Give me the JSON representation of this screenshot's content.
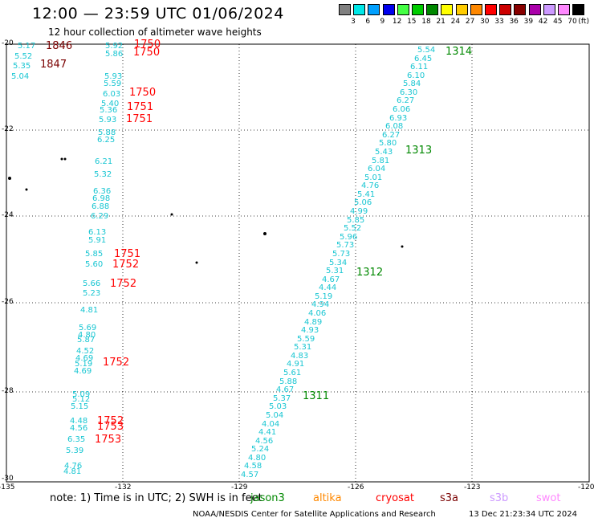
{
  "title": "12:00 — 23:59 UTC 01/06/2024",
  "subtitle": "12 hour collection of altimeter wave heights",
  "legend": {
    "unit": "(ft)",
    "levels": [
      "3",
      "6",
      "9",
      "12",
      "15",
      "18",
      "21",
      "24",
      "27",
      "30",
      "33",
      "36",
      "39",
      "42",
      "45",
      "70"
    ],
    "colors": [
      "#808080",
      "#00e8e8",
      "#00a0ff",
      "#0000ee",
      "#44ff44",
      "#00cc00",
      "#008800",
      "#ffff00",
      "#ffcc00",
      "#ff8800",
      "#ff0000",
      "#cc0000",
      "#880000",
      "#aa00aa",
      "#cc99ff",
      "#ff88ff",
      "#000000"
    ]
  },
  "axes": {
    "lat_labels": [
      "-20",
      "-22",
      "-24",
      "-26",
      "-28",
      "-30"
    ],
    "lon_labels": [
      "-135",
      "-132",
      "-129",
      "-126",
      "-123",
      "-120"
    ]
  },
  "tracks": {
    "west": {
      "color": "#19c6d2",
      "values": [
        "5.17",
        "5.52",
        "5.35",
        "5.04",
        "5.92",
        "5.86",
        "5.93",
        "5.59",
        "6.03",
        "5.40",
        "5.36",
        "5.93",
        "5.88",
        "6.25",
        "6.21",
        "5.32",
        "6.36",
        "6.98",
        "6.88",
        "6.29",
        "6.13",
        "5.91",
        "5.85",
        "5.60",
        "5.66",
        "5.23",
        "4.81",
        "5.69",
        "4.80",
        "5.87",
        "4.52",
        "4.69",
        "5.19",
        "4.69",
        "5.09",
        "5.12",
        "5.15",
        "4.48",
        "4.56",
        "6.35",
        "5.39",
        "4.76",
        "4.81"
      ],
      "time_labels": [
        {
          "text": "1846",
          "color": "#7a0000"
        },
        {
          "text": "1847",
          "color": "#7a0000"
        },
        {
          "text": "1750",
          "color": "#ff0000"
        },
        {
          "text": "1750",
          "color": "#ff0000"
        },
        {
          "text": "1750",
          "color": "#ff0000"
        },
        {
          "text": "1751",
          "color": "#ff0000"
        },
        {
          "text": "1751",
          "color": "#ff0000"
        },
        {
          "text": "1751",
          "color": "#ff0000"
        },
        {
          "text": "1752",
          "color": "#ff0000"
        },
        {
          "text": "1752",
          "color": "#ff0000"
        },
        {
          "text": "1752",
          "color": "#ff0000"
        },
        {
          "text": "1752",
          "color": "#ff0000"
        },
        {
          "text": "1753",
          "color": "#ff0000"
        },
        {
          "text": "1753",
          "color": "#ff0000"
        }
      ]
    },
    "east": {
      "color": "#19c6d2",
      "values": [
        "5.54",
        "6.45",
        "6.11",
        "6.10",
        "5.84",
        "6.30",
        "6.27",
        "6.06",
        "6.93",
        "6.08",
        "6.27",
        "5.80",
        "5.43",
        "5.81",
        "6.04",
        "5.01",
        "4.76",
        "5.41",
        "5.06",
        "4.99",
        "5.85",
        "5.52",
        "5.96",
        "5.73",
        "5.73",
        "5.34",
        "5.31",
        "4.67",
        "4.44",
        "5.19",
        "4.94",
        "4.06",
        "4.89",
        "4.93",
        "5.59",
        "5.31",
        "4.83",
        "4.91",
        "5.61",
        "5.88",
        "4.67",
        "5.37",
        "5.03",
        "5.04",
        "4.04",
        "4.41",
        "4.56",
        "5.24",
        "4.80",
        "4.58",
        "4.57"
      ],
      "time_labels": [
        {
          "text": "1314",
          "color": "#008800"
        },
        {
          "text": "1313",
          "color": "#008800"
        },
        {
          "text": "1312",
          "color": "#008800"
        },
        {
          "text": "1311",
          "color": "#008800"
        }
      ]
    }
  },
  "footer": {
    "note": "note:  1) Time is in UTC; 2) SWH is in feet",
    "satellites": [
      {
        "name": "jason3",
        "color": "#008800"
      },
      {
        "name": "altika",
        "color": "#ff8800"
      },
      {
        "name": "cryosat",
        "color": "#ff0000"
      },
      {
        "name": "s3a",
        "color": "#7a0000"
      },
      {
        "name": "s3b",
        "color": "#cc99ff"
      },
      {
        "name": "swot",
        "color": "#ff88ff"
      }
    ],
    "org": "NOAA/NESDIS Center for Satellite Applications and Research",
    "timestamp": "13 Dec 21:23:34 UTC 2024"
  }
}
